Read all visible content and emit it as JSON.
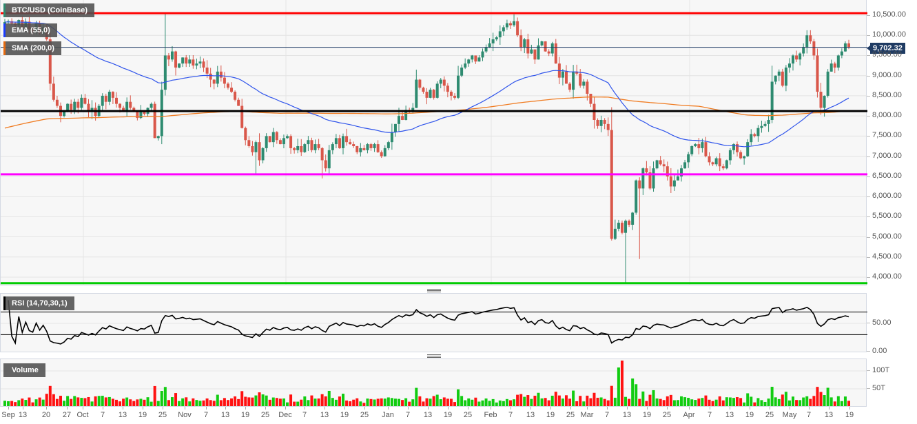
{
  "chart_data": {
    "type": "candlestick",
    "title": "BTC/USD (CoinBase)",
    "symbol": "BTC/USD",
    "exchange": "CoinBase",
    "last_price": "9,702.32",
    "indicators": [
      {
        "name": "EMA (55,0)",
        "color": "#2f54eb"
      },
      {
        "name": "SMA (200,0)",
        "color": "#f07c22"
      }
    ],
    "horizontal_lines": [
      {
        "price": 10550,
        "color": "#ff0000"
      },
      {
        "price": 9702.32,
        "color": "#1f3b63"
      },
      {
        "price": 8120,
        "color": "#000000"
      },
      {
        "price": 6550,
        "color": "#ff00ff"
      },
      {
        "price": 3850,
        "color": "#00cc00"
      }
    ],
    "y_axis": {
      "ticks": [
        "10,500.00",
        "10,000.00",
        "9,500.00",
        "9,000.00",
        "8,500.00",
        "8,000.00",
        "7,500.00",
        "7,000.00",
        "6,500.00",
        "6,000.00",
        "5,500.00",
        "5,000.00",
        "4,500.00",
        "4,000.00"
      ],
      "range": [
        3800,
        10700
      ]
    },
    "x_axis": {
      "ticks": [
        {
          "label": "Sep",
          "x": 12
        },
        {
          "label": "13",
          "x": 33
        },
        {
          "label": "20",
          "x": 67
        },
        {
          "label": "27",
          "x": 97
        },
        {
          "label": "Oct",
          "x": 120
        },
        {
          "label": "7",
          "x": 149
        },
        {
          "label": "13",
          "x": 178
        },
        {
          "label": "19",
          "x": 207
        },
        {
          "label": "25",
          "x": 236
        },
        {
          "label": "Nov",
          "x": 268
        },
        {
          "label": "7",
          "x": 299
        },
        {
          "label": "13",
          "x": 327
        },
        {
          "label": "19",
          "x": 356
        },
        {
          "label": "25",
          "x": 385
        },
        {
          "label": "Dec",
          "x": 414
        },
        {
          "label": "7",
          "x": 442
        },
        {
          "label": "13",
          "x": 471
        },
        {
          "label": "19",
          "x": 500
        },
        {
          "label": "25",
          "x": 529
        },
        {
          "label": "Jan",
          "x": 563
        },
        {
          "label": "7",
          "x": 592
        },
        {
          "label": "13",
          "x": 621
        },
        {
          "label": "19",
          "x": 650
        },
        {
          "label": "25",
          "x": 679
        },
        {
          "label": "Feb",
          "x": 712
        },
        {
          "label": "7",
          "x": 741
        },
        {
          "label": "13",
          "x": 770
        },
        {
          "label": "19",
          "x": 799
        },
        {
          "label": "25",
          "x": 828
        },
        {
          "label": "Mar",
          "x": 852
        },
        {
          "label": "7",
          "x": 881
        },
        {
          "label": "13",
          "x": 910
        },
        {
          "label": "19",
          "x": 939
        },
        {
          "label": "25",
          "x": 968
        },
        {
          "label": "Apr",
          "x": 1000
        },
        {
          "label": "7",
          "x": 1030
        },
        {
          "label": "13",
          "x": 1059
        },
        {
          "label": "19",
          "x": 1088
        },
        {
          "label": "25",
          "x": 1117
        },
        {
          "label": "May",
          "x": 1146
        },
        {
          "label": "7",
          "x": 1174
        },
        {
          "label": "13",
          "x": 1203
        },
        {
          "label": "19",
          "x": 1233
        }
      ]
    },
    "series": {
      "close": [
        10330,
        10350,
        10300,
        10250,
        10380,
        10200,
        10340,
        10150,
        10100,
        10300,
        10050,
        10200,
        9900,
        8800,
        8400,
        8250,
        8000,
        8100,
        8300,
        8150,
        8350,
        8200,
        8450,
        8300,
        8100,
        8200,
        8000,
        8250,
        8500,
        8350,
        8600,
        8450,
        8300,
        8200,
        8100,
        8350,
        8200,
        8100,
        7950,
        8100,
        8050,
        8200,
        8300,
        7450,
        7500,
        8650,
        9500,
        9400,
        9600,
        9200,
        9300,
        9450,
        9300,
        9400,
        9250,
        9300,
        9350,
        9200,
        9050,
        8900,
        8800,
        9100,
        8950,
        8800,
        8700,
        8600,
        8400,
        8250,
        7700,
        7400,
        7250,
        7100,
        7350,
        6900,
        7200,
        7500,
        7350,
        7600,
        7400,
        7300,
        7450,
        7500,
        7200,
        7150,
        7250,
        7100,
        7300,
        7400,
        7150,
        7300,
        7200,
        6900,
        6700,
        7150,
        7300,
        7450,
        7200,
        7500,
        7350,
        7300,
        7250,
        7100,
        7200,
        7150,
        7300,
        7200,
        7300,
        7100,
        7000,
        7200,
        7350,
        7600,
        7800,
        8000,
        7900,
        8150,
        8100,
        8200,
        8900,
        8700,
        8600,
        8450,
        8650,
        8450,
        8800,
        8900,
        8750,
        8600,
        8500,
        8450,
        9000,
        9200,
        9300,
        9400,
        9500,
        9350,
        9450,
        9600,
        9700,
        9800,
        9900,
        9950,
        10100,
        10200,
        10300,
        10250,
        10350,
        10000,
        9700,
        9900,
        9550,
        9650,
        9400,
        9750,
        9850,
        9600,
        9550,
        9800,
        9300,
        8950,
        9100,
        8800,
        8650,
        9100,
        9050,
        8750,
        8850,
        8550,
        8300,
        7900,
        7750,
        7900,
        7800,
        7650,
        4950,
        5200,
        5350,
        5100,
        5400,
        5300,
        5600,
        6400,
        6200,
        6700,
        6600,
        6200,
        6700,
        6900,
        6800,
        6750,
        6500,
        6250,
        6400,
        6500,
        6700,
        6850,
        7050,
        7250,
        7300,
        7200,
        7350,
        7000,
        6850,
        6800,
        6950,
        6750,
        6700,
        6900,
        7150,
        7300,
        7100,
        6950,
        7000,
        7350,
        7550,
        7500,
        7700,
        7750,
        7800,
        7900,
        8850,
        9000,
        9100,
        8750,
        9200,
        9300,
        9500,
        9400,
        9550,
        9700,
        10000,
        9850,
        9500,
        8600,
        8200,
        8500,
        9100,
        9300,
        9200,
        9500,
        9600,
        9800,
        9702
      ]
    }
  },
  "rsi": {
    "label": "RSI (14,70,30,1)",
    "upper": 70,
    "lower": 30,
    "ticks": [
      "50.00",
      "0.00"
    ]
  },
  "volume": {
    "label": "Volume",
    "ticks": [
      "100T",
      "50T"
    ]
  },
  "colors": {
    "up": "#2e8b70",
    "down": "#d9574a",
    "vol_up": "#11cc11",
    "vol_down": "#ff1111",
    "ema": "#2f54eb",
    "sma": "#f07c22"
  }
}
